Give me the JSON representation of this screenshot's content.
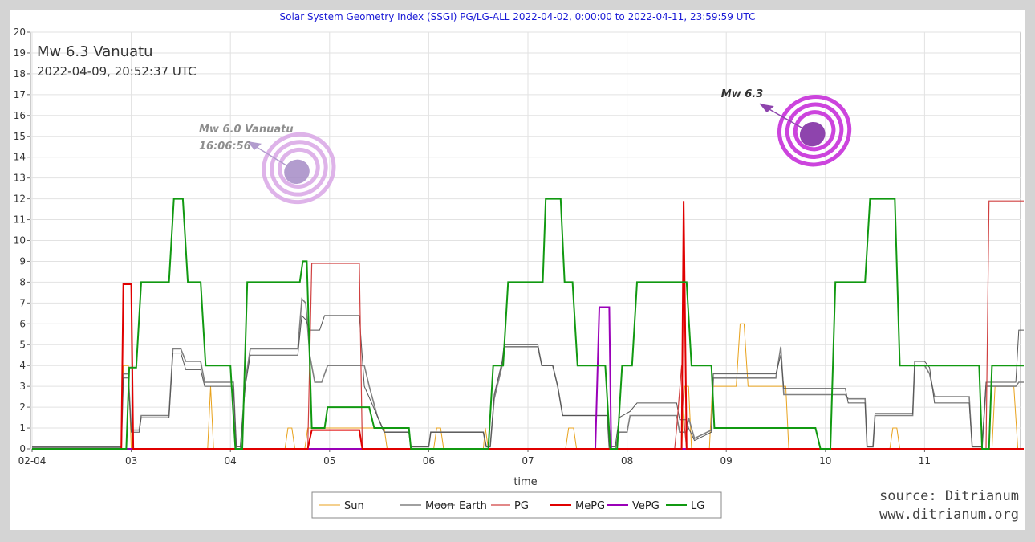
{
  "chart_data": {
    "type": "line",
    "title": "Solar System Geometry Index (SSGI) PG/LG-ALL 2022-04-02,  0:00:00 to 2022-04-11, 23:59:59 UTC",
    "xlabel": "time",
    "ylabel": "",
    "x_tick_labels": [
      "02-04",
      "03",
      "04",
      "05",
      "06",
      "07",
      "08",
      "09",
      "10",
      "11"
    ],
    "xlim": [
      0,
      10
    ],
    "ylim": [
      0,
      20
    ],
    "y_ticks": [
      0,
      1,
      2,
      3,
      4,
      5,
      6,
      7,
      8,
      9,
      10,
      11,
      12,
      13,
      14,
      15,
      16,
      17,
      18,
      19,
      20
    ],
    "grid": true,
    "legend_position": "bottom-center",
    "series": [
      {
        "name": "Sun",
        "color": "#e8a21c",
        "width": 1,
        "points": [
          [
            0,
            0
          ],
          [
            0.9,
            0
          ],
          [
            0.92,
            4
          ],
          [
            0.97,
            4
          ],
          [
            1.0,
            0
          ],
          [
            1.77,
            0
          ],
          [
            1.8,
            3
          ],
          [
            1.83,
            0
          ],
          [
            2.55,
            0
          ],
          [
            2.58,
            1
          ],
          [
            2.62,
            1
          ],
          [
            2.65,
            0
          ],
          [
            2.75,
            0
          ],
          [
            2.78,
            1
          ],
          [
            3.2,
            1
          ],
          [
            3.55,
            1
          ],
          [
            3.58,
            0
          ],
          [
            4.05,
            0
          ],
          [
            4.08,
            1
          ],
          [
            4.12,
            1
          ],
          [
            4.15,
            0
          ],
          [
            4.55,
            0
          ],
          [
            4.57,
            1
          ],
          [
            4.6,
            0
          ],
          [
            5.38,
            0
          ],
          [
            5.41,
            1
          ],
          [
            5.46,
            1
          ],
          [
            5.49,
            0
          ],
          [
            6.55,
            0
          ],
          [
            6.58,
            3
          ],
          [
            6.62,
            3
          ],
          [
            6.65,
            0
          ],
          [
            6.83,
            0
          ],
          [
            6.86,
            3
          ],
          [
            7.1,
            3
          ],
          [
            7.14,
            6
          ],
          [
            7.18,
            6
          ],
          [
            7.22,
            3
          ],
          [
            7.6,
            3
          ],
          [
            7.63,
            0
          ],
          [
            8.65,
            0
          ],
          [
            8.68,
            1
          ],
          [
            8.72,
            1
          ],
          [
            8.75,
            0
          ],
          [
            9.68,
            0
          ],
          [
            9.71,
            3
          ],
          [
            9.9,
            3
          ],
          [
            9.94,
            0
          ],
          [
            10,
            0
          ]
        ]
      },
      {
        "name": "Moon",
        "color": "#808080",
        "width": 1.6,
        "points": [
          [
            0,
            0.05
          ],
          [
            0.9,
            0.05
          ],
          [
            0.92,
            3.6
          ],
          [
            0.97,
            3.6
          ],
          [
            1.0,
            0.9
          ],
          [
            1.08,
            0.9
          ],
          [
            1.1,
            1.6
          ],
          [
            1.38,
            1.6
          ],
          [
            1.42,
            4.8
          ],
          [
            1.5,
            4.8
          ],
          [
            1.55,
            4.2
          ],
          [
            1.7,
            4.2
          ],
          [
            1.74,
            3.2
          ],
          [
            2.03,
            3.2
          ],
          [
            2.06,
            0
          ],
          [
            2.1,
            0
          ],
          [
            2.15,
            3.2
          ],
          [
            2.2,
            4.8
          ],
          [
            2.68,
            4.8
          ],
          [
            2.72,
            7.2
          ],
          [
            2.76,
            7.0
          ],
          [
            2.8,
            4.5
          ],
          [
            2.85,
            3.2
          ],
          [
            2.92,
            3.2
          ],
          [
            2.98,
            4.0
          ],
          [
            3.35,
            4.0
          ],
          [
            3.4,
            3.0
          ],
          [
            3.48,
            1.6
          ],
          [
            3.55,
            0.8
          ],
          [
            3.8,
            0.8
          ],
          [
            3.82,
            0.1
          ],
          [
            4.0,
            0.1
          ],
          [
            4.02,
            0.8
          ],
          [
            4.55,
            0.8
          ],
          [
            4.58,
            0.1
          ],
          [
            4.62,
            0.1
          ],
          [
            4.66,
            2.4
          ],
          [
            4.74,
            4.0
          ],
          [
            4.76,
            4.9
          ],
          [
            5.1,
            4.9
          ],
          [
            5.14,
            4.0
          ],
          [
            5.25,
            4.0
          ],
          [
            5.3,
            3.0
          ],
          [
            5.35,
            1.6
          ],
          [
            5.8,
            1.6
          ],
          [
            5.82,
            0
          ],
          [
            5.88,
            0
          ],
          [
            5.92,
            0.8
          ],
          [
            6.0,
            0.8
          ],
          [
            6.03,
            1.6
          ],
          [
            6.5,
            1.6
          ],
          [
            6.53,
            0.8
          ],
          [
            6.6,
            0.8
          ],
          [
            6.62,
            1.5
          ],
          [
            6.68,
            0.5
          ],
          [
            6.85,
            0.9
          ],
          [
            6.87,
            3.4
          ],
          [
            7.5,
            3.4
          ],
          [
            7.55,
            4.9
          ],
          [
            7.58,
            2.6
          ],
          [
            8.2,
            2.6
          ],
          [
            8.23,
            2.4
          ],
          [
            8.4,
            2.4
          ],
          [
            8.42,
            0.1
          ],
          [
            8.48,
            0.1
          ],
          [
            8.5,
            1.6
          ],
          [
            8.6,
            1.6
          ],
          [
            8.62,
            1.6
          ],
          [
            8.88,
            1.6
          ],
          [
            8.9,
            4.0
          ],
          [
            9.0,
            4.0
          ],
          [
            9.05,
            3.6
          ],
          [
            9.1,
            2.5
          ],
          [
            9.45,
            2.5
          ],
          [
            9.48,
            0.1
          ],
          [
            9.58,
            0.1
          ],
          [
            9.62,
            3.0
          ],
          [
            9.92,
            3.0
          ],
          [
            9.95,
            3.2
          ],
          [
            10,
            3.2
          ]
        ]
      },
      {
        "name": "Earth",
        "color": "#555555",
        "width": 1,
        "points": [
          [
            0,
            0.1
          ],
          [
            0.9,
            0.1
          ],
          [
            0.92,
            3.4
          ],
          [
            0.97,
            3.4
          ],
          [
            1.0,
            0.8
          ],
          [
            1.08,
            0.8
          ],
          [
            1.1,
            1.5
          ],
          [
            1.38,
            1.5
          ],
          [
            1.42,
            4.6
          ],
          [
            1.5,
            4.6
          ],
          [
            1.55,
            3.8
          ],
          [
            1.7,
            3.8
          ],
          [
            1.74,
            3.0
          ],
          [
            2.03,
            3.0
          ],
          [
            2.06,
            0.1
          ],
          [
            2.1,
            0.1
          ],
          [
            2.15,
            3.0
          ],
          [
            2.2,
            4.5
          ],
          [
            2.68,
            4.5
          ],
          [
            2.72,
            6.4
          ],
          [
            2.76,
            6.2
          ],
          [
            2.8,
            5.7
          ],
          [
            2.9,
            5.7
          ],
          [
            2.95,
            6.4
          ],
          [
            3.3,
            6.4
          ],
          [
            3.35,
            3.0
          ],
          [
            3.48,
            1.6
          ],
          [
            3.55,
            0.8
          ],
          [
            3.8,
            0.8
          ],
          [
            3.82,
            0.1
          ],
          [
            4.0,
            0.1
          ],
          [
            4.02,
            0.8
          ],
          [
            4.55,
            0.8
          ],
          [
            4.58,
            0.1
          ],
          [
            4.62,
            0.1
          ],
          [
            4.66,
            2.6
          ],
          [
            4.74,
            4.2
          ],
          [
            4.76,
            5.0
          ],
          [
            5.1,
            5.0
          ],
          [
            5.14,
            4.0
          ],
          [
            5.25,
            4.0
          ],
          [
            5.3,
            3.0
          ],
          [
            5.35,
            1.6
          ],
          [
            5.8,
            1.6
          ],
          [
            5.82,
            0.1
          ],
          [
            5.88,
            0.1
          ],
          [
            5.92,
            1.5
          ],
          [
            6.03,
            1.8
          ],
          [
            6.1,
            2.2
          ],
          [
            6.5,
            2.2
          ],
          [
            6.53,
            1.4
          ],
          [
            6.6,
            1.4
          ],
          [
            6.62,
            1.0
          ],
          [
            6.68,
            0.4
          ],
          [
            6.85,
            0.8
          ],
          [
            6.87,
            3.6
          ],
          [
            7.5,
            3.6
          ],
          [
            7.55,
            4.5
          ],
          [
            7.58,
            2.9
          ],
          [
            8.2,
            2.9
          ],
          [
            8.23,
            2.2
          ],
          [
            8.4,
            2.2
          ],
          [
            8.42,
            0.1
          ],
          [
            8.48,
            0.1
          ],
          [
            8.5,
            1.7
          ],
          [
            8.6,
            1.7
          ],
          [
            8.88,
            1.7
          ],
          [
            8.9,
            4.2
          ],
          [
            9.0,
            4.2
          ],
          [
            9.05,
            3.9
          ],
          [
            9.1,
            2.2
          ],
          [
            9.45,
            2.2
          ],
          [
            9.48,
            0.1
          ],
          [
            9.58,
            0.1
          ],
          [
            9.62,
            3.2
          ],
          [
            9.92,
            3.2
          ],
          [
            9.95,
            5.7
          ],
          [
            10,
            5.7
          ]
        ]
      },
      {
        "name": "PG",
        "color": "#d04040",
        "width": 1.2,
        "points": [
          [
            0,
            0
          ],
          [
            0.9,
            0
          ],
          [
            0.92,
            7.9
          ],
          [
            1.0,
            7.9
          ],
          [
            1.02,
            0
          ],
          [
            2.78,
            0
          ],
          [
            2.82,
            8.9
          ],
          [
            3.3,
            8.9
          ],
          [
            3.33,
            0
          ],
          [
            6.48,
            0
          ],
          [
            6.5,
            1.0
          ],
          [
            6.55,
            4.0
          ],
          [
            6.58,
            1.0
          ],
          [
            6.6,
            0
          ],
          [
            9.62,
            0
          ],
          [
            9.65,
            11.9
          ],
          [
            10,
            11.9
          ]
        ]
      },
      {
        "name": "MePG",
        "color": "#e00000",
        "width": 2,
        "points": [
          [
            0,
            0
          ],
          [
            0.9,
            0
          ],
          [
            0.92,
            7.9
          ],
          [
            1.0,
            7.9
          ],
          [
            1.02,
            0
          ],
          [
            2.78,
            0
          ],
          [
            2.82,
            0.9
          ],
          [
            3.3,
            0.9
          ],
          [
            3.33,
            0
          ],
          [
            6.55,
            0
          ],
          [
            6.57,
            11.9
          ],
          [
            6.6,
            0
          ],
          [
            10,
            0
          ]
        ]
      },
      {
        "name": "VePG",
        "color": "#9a00b8",
        "width": 2,
        "points": [
          [
            0,
            0
          ],
          [
            5.68,
            0
          ],
          [
            5.72,
            6.8
          ],
          [
            5.82,
            6.8
          ],
          [
            5.84,
            0
          ],
          [
            10,
            0
          ]
        ]
      },
      {
        "name": "LG",
        "color": "#119911",
        "width": 2,
        "points": [
          [
            0,
            0
          ],
          [
            0.95,
            0
          ],
          [
            0.98,
            3.9
          ],
          [
            1.05,
            3.9
          ],
          [
            1.1,
            8.0
          ],
          [
            1.38,
            8.0
          ],
          [
            1.43,
            12.0
          ],
          [
            1.52,
            12.0
          ],
          [
            1.57,
            8.0
          ],
          [
            1.7,
            8.0
          ],
          [
            1.75,
            4.0
          ],
          [
            2.0,
            4.0
          ],
          [
            2.05,
            0
          ],
          [
            2.12,
            0
          ],
          [
            2.17,
            8.0
          ],
          [
            2.7,
            8.0
          ],
          [
            2.73,
            9.0
          ],
          [
            2.77,
            9.0
          ],
          [
            2.82,
            1.0
          ],
          [
            2.95,
            1.0
          ],
          [
            2.98,
            2.0
          ],
          [
            3.4,
            2.0
          ],
          [
            3.45,
            1.0
          ],
          [
            3.55,
            1.0
          ],
          [
            3.8,
            1.0
          ],
          [
            3.82,
            0
          ],
          [
            4.6,
            0
          ],
          [
            4.65,
            4.0
          ],
          [
            4.75,
            4.0
          ],
          [
            4.8,
            8.0
          ],
          [
            5.15,
            8.0
          ],
          [
            5.18,
            12.0
          ],
          [
            5.33,
            12.0
          ],
          [
            5.37,
            8.0
          ],
          [
            5.45,
            8.0
          ],
          [
            5.5,
            4.0
          ],
          [
            5.78,
            4.0
          ],
          [
            5.83,
            0
          ],
          [
            5.9,
            0
          ],
          [
            5.95,
            4.0
          ],
          [
            6.05,
            4.0
          ],
          [
            6.1,
            8.0
          ],
          [
            6.6,
            8.0
          ],
          [
            6.65,
            4.0
          ],
          [
            6.85,
            4.0
          ],
          [
            6.88,
            1.0
          ],
          [
            7.9,
            1.0
          ],
          [
            7.95,
            0
          ],
          [
            8.05,
            0
          ],
          [
            8.1,
            8.0
          ],
          [
            8.4,
            8.0
          ],
          [
            8.45,
            12.0
          ],
          [
            8.7,
            12.0
          ],
          [
            8.75,
            4.0
          ],
          [
            9.55,
            4.0
          ],
          [
            9.58,
            0
          ],
          [
            9.65,
            0
          ],
          [
            9.68,
            4.0
          ],
          [
            10,
            4.0
          ]
        ]
      }
    ]
  },
  "event": {
    "title": "Mw 6.3 Vanuatu",
    "time": "2022-04-09, 20:52:37 UTC",
    "x": 7.87,
    "y": 15.1,
    "note": "Mw 6.3"
  },
  "prior_event": {
    "note_line1": "Mw 6.0 Vanuatu",
    "note_line2": "16:06:56",
    "x": 2.67,
    "y": 13.3
  },
  "source": {
    "line1": "source: Ditrianum",
    "line2": "www.ditrianum.org"
  },
  "colors": {
    "title": "#1a1ad6",
    "grid": "#e2e2e2",
    "marker_current": "#cc44dd",
    "marker_prior": "#d9a6e6"
  }
}
